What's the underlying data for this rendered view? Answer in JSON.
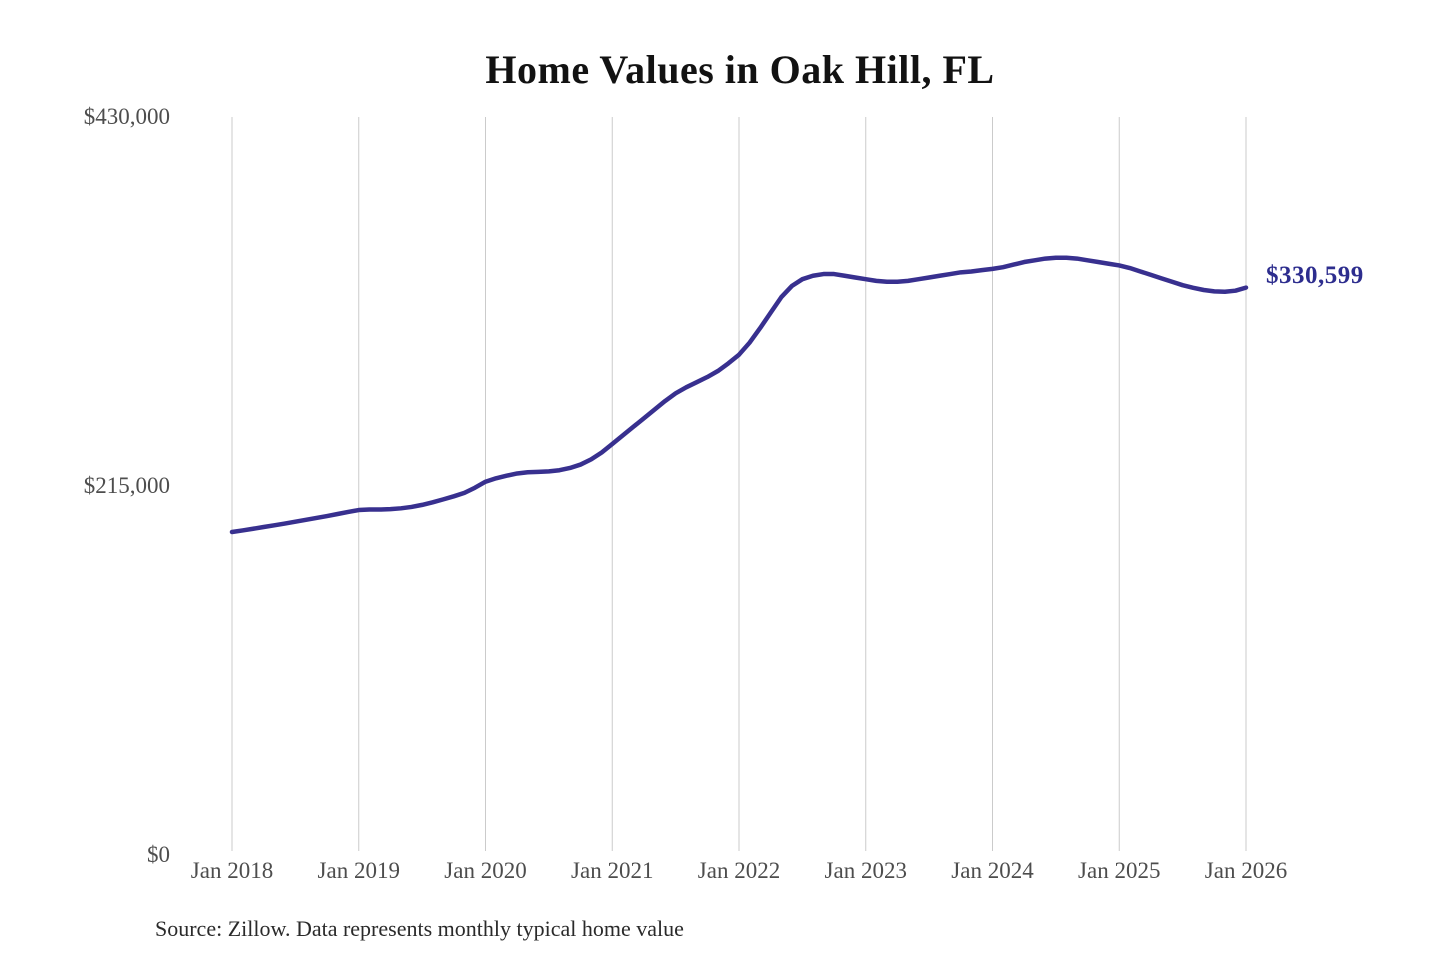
{
  "chart_data": {
    "type": "line",
    "title": "Home Values in Oak Hill, FL",
    "xlabel": "",
    "ylabel": "",
    "ylim": [
      0,
      430000
    ],
    "grid": "vertical-only",
    "legend": "none",
    "x_tick_labels": [
      "Jan 2018",
      "Jan 2019",
      "Jan 2020",
      "Jan 2021",
      "Jan 2022",
      "Jan 2023",
      "Jan 2024",
      "Jan 2025",
      "Jan 2026"
    ],
    "y_ticks": [
      {
        "label": "$430,000",
        "value": 430000
      },
      {
        "label": "$215,000",
        "value": 215000
      },
      {
        "label": "$0",
        "value": 0
      }
    ],
    "end_label": "$330,599",
    "end_value": 330599,
    "line_color": "#38308f",
    "series": [
      {
        "name": "Monthly typical home value",
        "x_start": "Jan 2018",
        "x_end": "Jan 2026",
        "interval": "monthly",
        "values": [
          188200,
          189100,
          190100,
          191100,
          192100,
          193100,
          194200,
          195300,
          196400,
          197500,
          198700,
          199900,
          201000,
          201300,
          201300,
          201500,
          202000,
          202800,
          204000,
          205500,
          207200,
          209000,
          211000,
          214000,
          217500,
          219500,
          221000,
          222300,
          223000,
          223200,
          223500,
          224200,
          225500,
          227500,
          230500,
          234500,
          239500,
          244500,
          249500,
          254500,
          259500,
          264500,
          269000,
          272500,
          275500,
          278500,
          282000,
          286500,
          291500,
          298500,
          307000,
          316000,
          325000,
          331500,
          335500,
          337500,
          338500,
          338500,
          337500,
          336500,
          335500,
          334500,
          334000,
          334000,
          334500,
          335500,
          336500,
          337500,
          338500,
          339500,
          340000,
          340800,
          341500,
          342500,
          344000,
          345500,
          346500,
          347500,
          348000,
          348000,
          347500,
          346500,
          345500,
          344500,
          343500,
          342000,
          340000,
          338000,
          336000,
          334000,
          332000,
          330500,
          329200,
          328400,
          328200,
          328800,
          330599
        ]
      }
    ]
  },
  "source_note": "Source: Zillow. Data represents monthly typical home value",
  "colors": {
    "background": "#ffffff",
    "gridline": "#cbcbcb",
    "axis_text": "#4d4d4d",
    "title_text": "#121212",
    "line": "#38308f",
    "end_label_text": "#2d2d8e"
  }
}
